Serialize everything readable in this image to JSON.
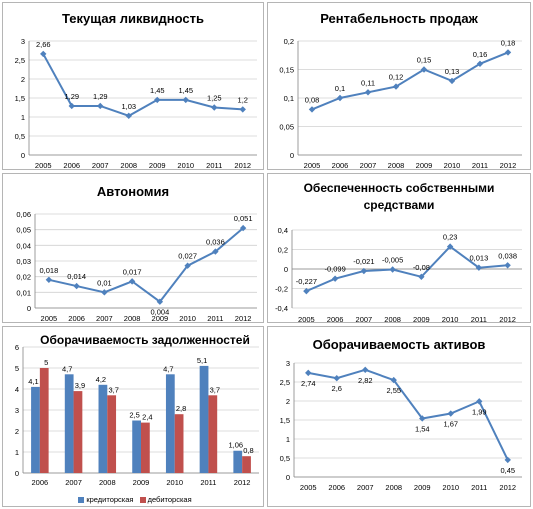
{
  "chart_data": [
    {
      "type": "line",
      "title": "Текущая ликвидность",
      "categories": [
        "2005",
        "2006",
        "2007",
        "2008",
        "2009",
        "2010",
        "2011",
        "2012"
      ],
      "values": [
        2.66,
        1.29,
        1.29,
        1.03,
        1.45,
        1.45,
        1.25,
        1.2
      ],
      "value_labels": [
        "2,66",
        "1,29",
        "1,29",
        "1,03",
        "1,45",
        "1,45",
        "1,25",
        "1,2"
      ],
      "ylim": [
        0,
        3
      ],
      "yticks": [
        "0",
        "0,5",
        "1",
        "1,5",
        "2",
        "2,5",
        "3"
      ],
      "grid": true,
      "color": "#4F81BD"
    },
    {
      "type": "line",
      "title": "Рентабельность продаж",
      "categories": [
        "2005",
        "2006",
        "2007",
        "2008",
        "2009",
        "2010",
        "2011",
        "2012"
      ],
      "values": [
        0.08,
        0.1,
        0.11,
        0.12,
        0.15,
        0.13,
        0.16,
        0.18
      ],
      "value_labels": [
        "0,08",
        "0,1",
        "0,11",
        "0,12",
        "0,15",
        "0,13",
        "0,16",
        "0,18"
      ],
      "ylim": [
        0,
        0.2
      ],
      "yticks": [
        "0",
        "0,05",
        "0,1",
        "0,15",
        "0,2"
      ],
      "grid": true,
      "color": "#4F81BD"
    },
    {
      "type": "line",
      "title": "Автономия",
      "categories": [
        "2005",
        "2006",
        "2007",
        "2008",
        "2009",
        "2010",
        "2011",
        "2012"
      ],
      "values": [
        0.018,
        0.014,
        0.01,
        0.017,
        0.004,
        0.027,
        0.036,
        0.051
      ],
      "value_labels": [
        "0,018",
        "0,014",
        "0,01",
        "0,017",
        "0,004",
        "0,027",
        "0,036",
        "0,051"
      ],
      "ylim": [
        0,
        0.06
      ],
      "yticks": [
        "0",
        "0,01",
        "0,02",
        "0,03",
        "0,04",
        "0,05",
        "0,06"
      ],
      "grid": true,
      "color": "#4F81BD"
    },
    {
      "type": "line",
      "title": "Обеспеченность собственными средствами",
      "title_lines": [
        "Обеспеченность собственными",
        "средствами"
      ],
      "categories": [
        "2005",
        "2006",
        "2007",
        "2008",
        "2009",
        "2010",
        "2011",
        "2012"
      ],
      "values": [
        -0.227,
        -0.099,
        -0.021,
        -0.005,
        -0.08,
        0.23,
        0.013,
        0.038
      ],
      "value_labels": [
        "-0,227",
        "-0,099",
        "-0,021",
        "-0,005",
        "-0,08",
        "0,23",
        "0,013",
        "0,038"
      ],
      "ylim": [
        -0.4,
        0.4
      ],
      "yticks": [
        "-0,4",
        "-0,2",
        "0",
        "0,2",
        "0,4"
      ],
      "grid": true,
      "color": "#4F81BD"
    },
    {
      "type": "bar",
      "title": "Оборачиваемость задолженностей",
      "categories": [
        "2006",
        "2007",
        "2008",
        "2009",
        "2010",
        "2011",
        "2012"
      ],
      "series": [
        {
          "name": "кредиторская",
          "values": [
            4.1,
            4.7,
            4.2,
            2.5,
            4.7,
            5.1,
            1.06
          ],
          "value_labels": [
            "4,1",
            "4,7",
            "4,2",
            "2,5",
            "4,7",
            "5,1",
            "1,06"
          ],
          "color": "#4F81BD"
        },
        {
          "name": "дебиторская",
          "values": [
            5,
            3.9,
            3.7,
            2.4,
            2.8,
            3.7,
            0.8
          ],
          "value_labels": [
            "5",
            "3,9",
            "3,7",
            "2,4",
            "2,8",
            "3,7",
            "0,8"
          ],
          "color": "#C0504D"
        }
      ],
      "ylim": [
        0,
        6
      ],
      "yticks": [
        "0",
        "1",
        "2",
        "3",
        "4",
        "5",
        "6"
      ],
      "grid": true,
      "legend": "bottom"
    },
    {
      "type": "line",
      "title": "Оборачиваемость активов",
      "categories": [
        "2005",
        "2006",
        "2007",
        "2008",
        "2009",
        "2010",
        "2011",
        "2012"
      ],
      "values": [
        2.74,
        2.6,
        2.82,
        2.55,
        1.54,
        1.67,
        1.99,
        0.45
      ],
      "value_labels": [
        "2,74",
        "2,6",
        "2,82",
        "2,55",
        "1,54",
        "1,67",
        "1,99",
        "0,45"
      ],
      "ylim": [
        0,
        3
      ],
      "yticks": [
        "0",
        "0,5",
        "1",
        "1,5",
        "2",
        "2,5",
        "3"
      ],
      "grid": true,
      "color": "#4F81BD"
    }
  ]
}
